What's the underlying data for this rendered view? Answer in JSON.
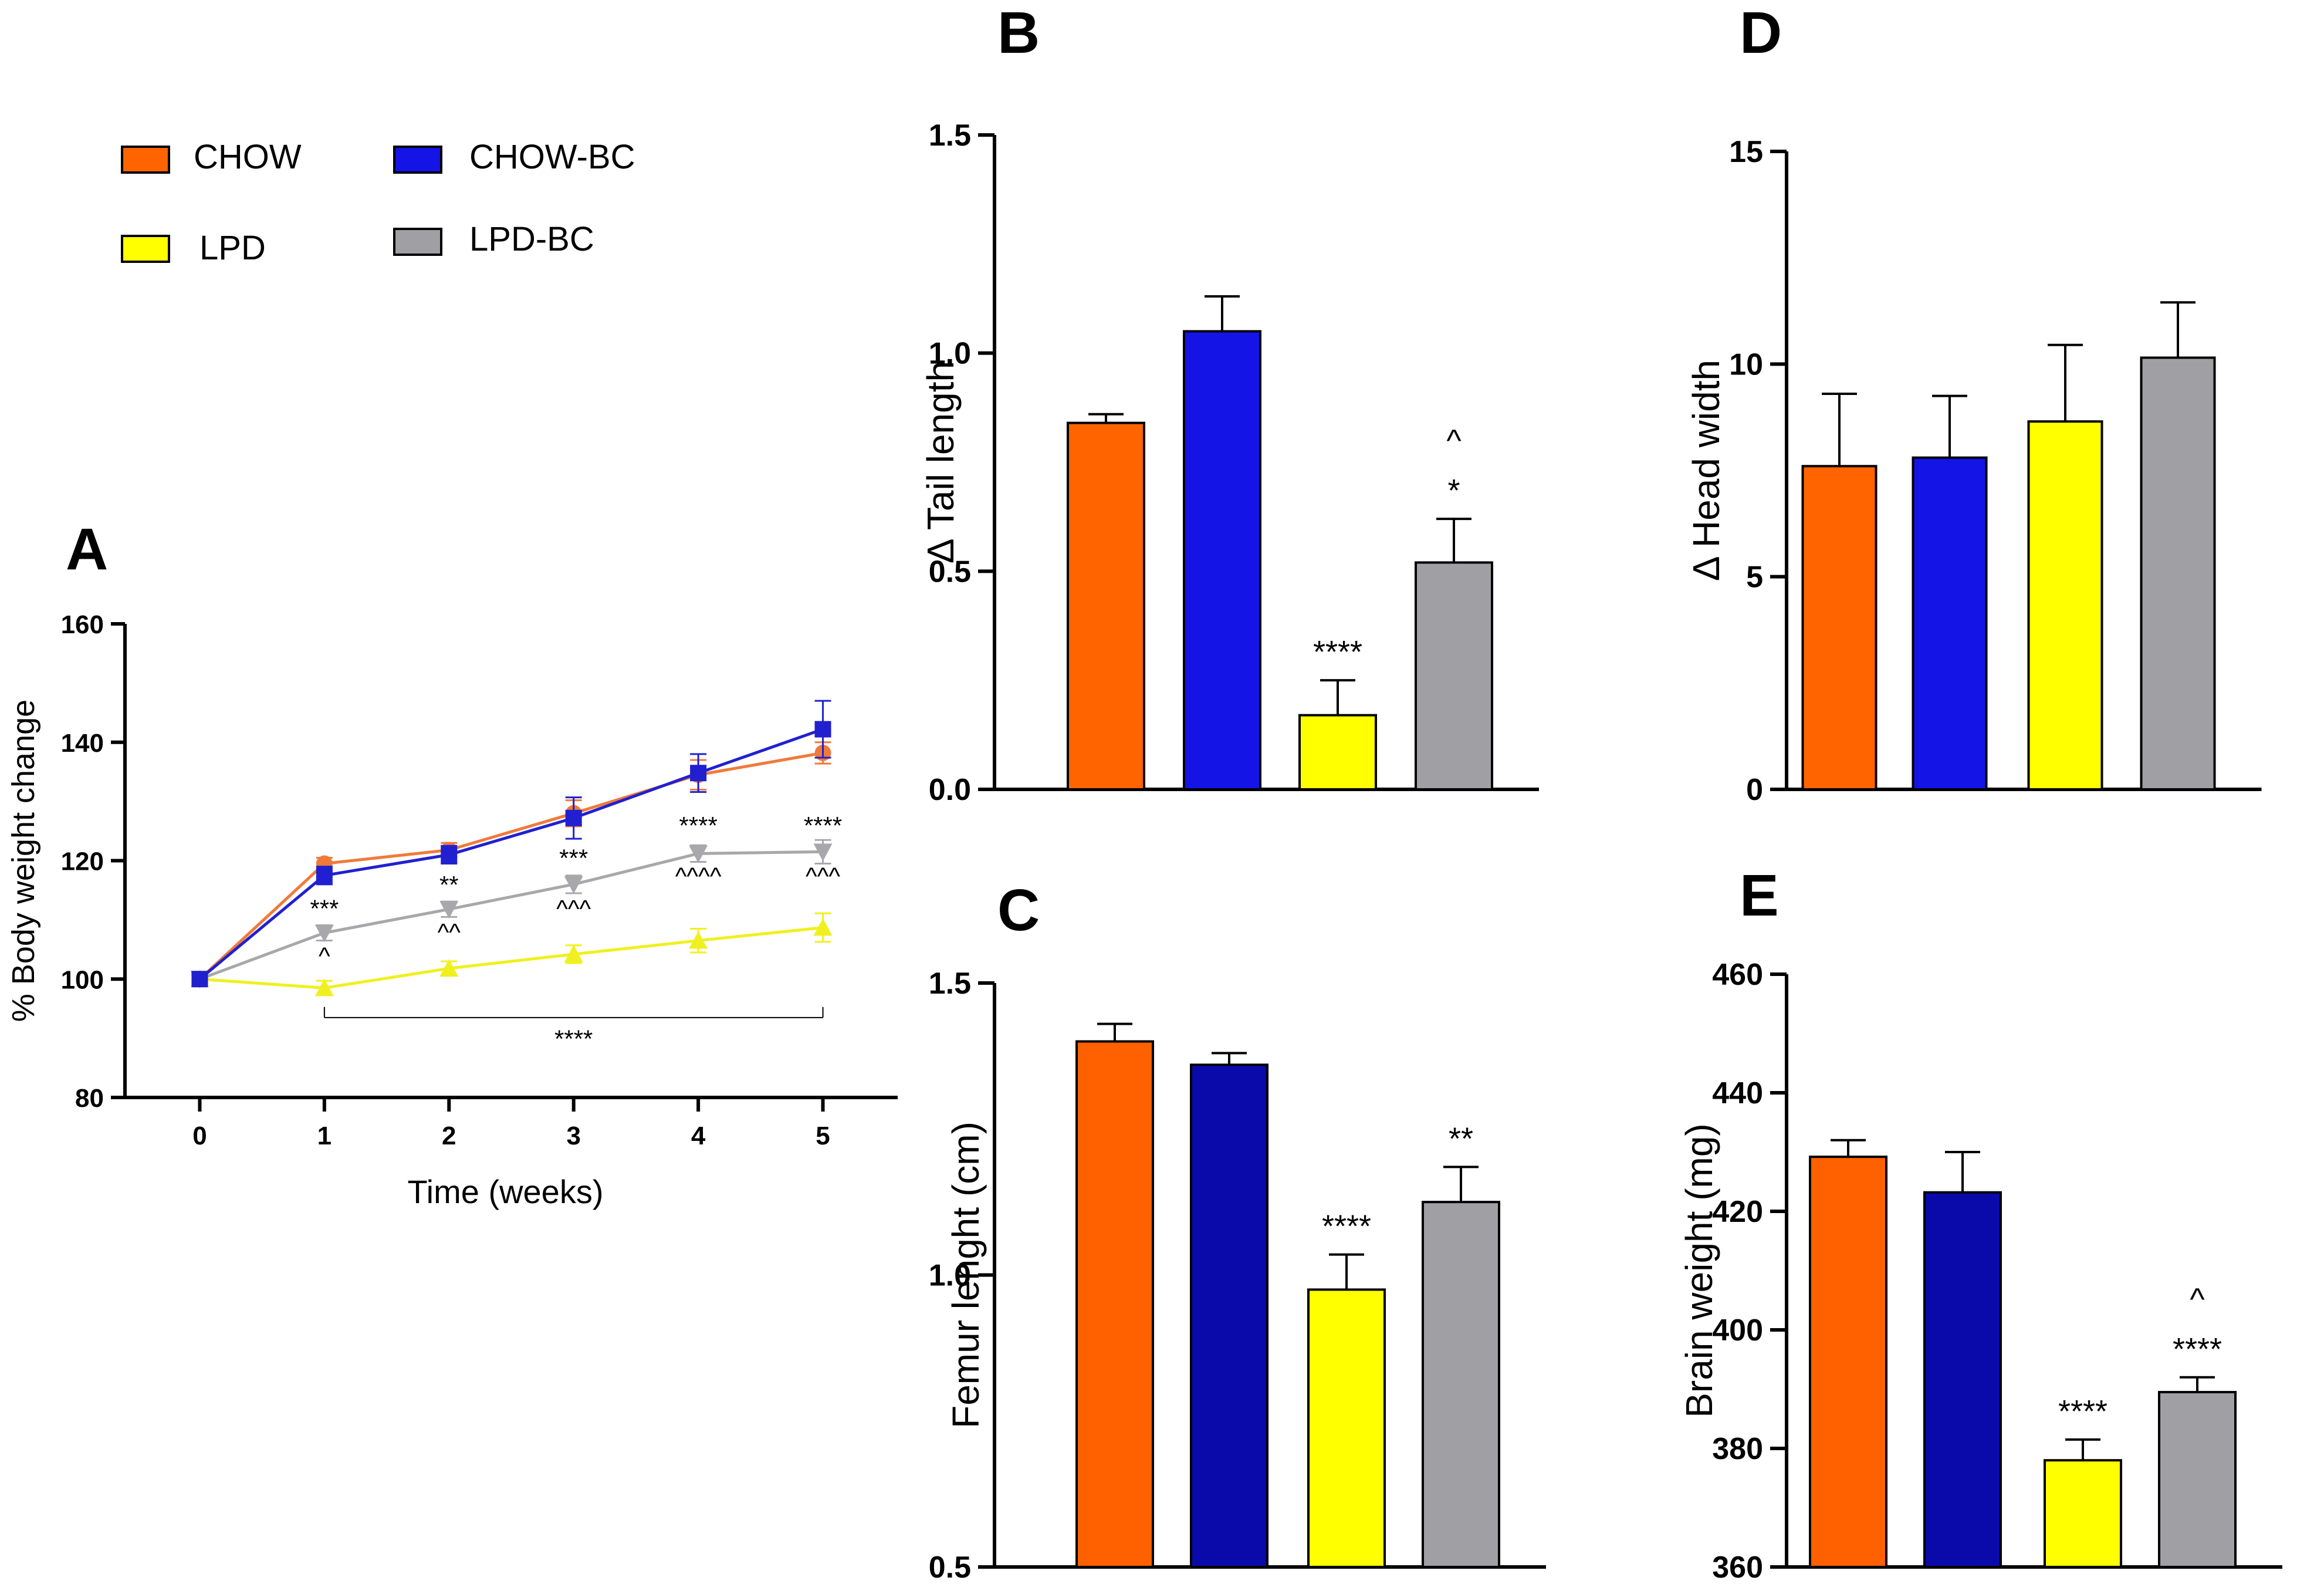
{
  "legend": [
    {
      "name": "CHOW",
      "color": "#FF6400"
    },
    {
      "name": "CHOW-BC",
      "color": "#1414E6"
    },
    {
      "name": "LPD",
      "color": "#FFFF00"
    },
    {
      "name": "LPD-BC",
      "color": "#A0A0A4"
    }
  ],
  "chart_data": [
    {
      "panel": "A",
      "type": "line",
      "xlabel": "Time (weeks)",
      "ylabel": "% Body weight change",
      "x": [
        0,
        1,
        2,
        3,
        4,
        5
      ],
      "xlim": [
        -0.6,
        5.6
      ],
      "ylim": [
        80,
        160
      ],
      "yticks": [
        80,
        100,
        120,
        140,
        160
      ],
      "series": [
        {
          "name": "CHOW",
          "color": "#F07A3A",
          "marker": "circle",
          "values": [
            100,
            119.5,
            121.8,
            128,
            134.5,
            138.2
          ],
          "errors": [
            0.8,
            1.0,
            1.2,
            2.2,
            2.5,
            1.8
          ]
        },
        {
          "name": "CHOW-BC",
          "color": "#2020D0",
          "marker": "square",
          "values": [
            100,
            117.5,
            121,
            127.2,
            134.8,
            142.2
          ],
          "errors": [
            0.8,
            1.5,
            1.5,
            3.5,
            3.2,
            4.8
          ]
        },
        {
          "name": "LPD",
          "color": "#F0F020",
          "marker": "triangle-up",
          "values": [
            100,
            98.5,
            101.8,
            104.2,
            106.5,
            108.7
          ],
          "errors": [
            0.6,
            1.2,
            1.2,
            1.5,
            2.0,
            2.4
          ]
        },
        {
          "name": "LPD-BC",
          "color": "#A8A8AC",
          "marker": "triangle-down",
          "values": [
            100,
            107.8,
            111.8,
            116,
            121.2,
            121.5
          ],
          "errors": [
            0.6,
            1.3,
            1.3,
            1.5,
            1.4,
            2.0
          ]
        }
      ],
      "annotations": [
        {
          "text": "***",
          "x": 1,
          "y": 110.5
        },
        {
          "text": "^",
          "x": 1,
          "y": 102.5
        },
        {
          "text": "**",
          "x": 2,
          "y": 114.5
        },
        {
          "text": "^^",
          "x": 2,
          "y": 106.5
        },
        {
          "text": "***",
          "x": 3,
          "y": 119.0
        },
        {
          "text": "^^^",
          "x": 3,
          "y": 110.5
        },
        {
          "text": "****",
          "x": 4,
          "y": 124.5
        },
        {
          "text": "^^^^",
          "x": 4,
          "y": 116.0
        },
        {
          "text": "****",
          "x": 5,
          "y": 124.5
        },
        {
          "text": "^^^",
          "x": 5,
          "y": 116.0
        }
      ],
      "bracket": {
        "x1": 1,
        "x2": 5,
        "y": 93.5,
        "label": "****",
        "label_y": 88.5
      }
    },
    {
      "panel": "B",
      "type": "bar",
      "ylabel": "Δ Tail length",
      "categories": [
        "CHOW",
        "CHOW-BC",
        "LPD",
        "LPD-BC"
      ],
      "colors": [
        "#FF6400",
        "#1414E6",
        "#FFFF00",
        "#A0A0A4"
      ],
      "values": [
        0.84,
        1.05,
        0.17,
        0.52
      ],
      "errors": [
        0.02,
        0.08,
        0.08,
        0.1
      ],
      "ylim": [
        0,
        1.5
      ],
      "yticks": [
        "0.0",
        "0.5",
        "1.0",
        "1.5"
      ],
      "annotations": [
        [
          "",
          ""
        ],
        [
          "",
          ""
        ],
        [
          "****",
          ""
        ],
        [
          "*",
          "^"
        ]
      ]
    },
    {
      "panel": "C",
      "type": "bar",
      "ylabel": "Femur lenght (cm)",
      "categories": [
        "CHOW",
        "CHOW-BC",
        "LPD",
        "LPD-BC"
      ],
      "colors": [
        "#FF6000",
        "#0A0AAA",
        "#FFFF00",
        "#A0A0A4"
      ],
      "values": [
        1.4,
        1.36,
        0.975,
        1.125
      ],
      "errors": [
        0.03,
        0.02,
        0.06,
        0.06
      ],
      "ylim": [
        0.5,
        1.5
      ],
      "yticks": [
        "0.5",
        "1.0",
        "1.5"
      ],
      "annotations": [
        [
          "",
          ""
        ],
        [
          "",
          ""
        ],
        [
          "****",
          ""
        ],
        [
          "**",
          ""
        ]
      ]
    },
    {
      "panel": "D",
      "type": "bar",
      "ylabel": "Δ Head width",
      "categories": [
        "CHOW",
        "CHOW-BC",
        "LPD",
        "LPD-BC"
      ],
      "colors": [
        "#FF6400",
        "#1414E6",
        "#FFFF00",
        "#A0A0A4"
      ],
      "values": [
        7.6,
        7.8,
        8.65,
        10.15
      ],
      "errors": [
        1.7,
        1.45,
        1.8,
        1.3
      ],
      "ylim": [
        0,
        15
      ],
      "yticks": [
        "0",
        "5",
        "10",
        "15"
      ],
      "annotations": [
        [
          "",
          ""
        ],
        [
          "",
          ""
        ],
        [
          "",
          ""
        ],
        [
          "",
          ""
        ]
      ]
    },
    {
      "panel": "E",
      "type": "bar",
      "ylabel": "Brain weight (mg)",
      "categories": [
        "CHOW",
        "CHOW-BC",
        "LPD",
        "LPD-BC"
      ],
      "colors": [
        "#FF6000",
        "#0A0AAA",
        "#FFFF00",
        "#A0A0A4"
      ],
      "values": [
        429.2,
        423.2,
        378.0,
        389.5
      ],
      "errors": [
        2.8,
        6.8,
        3.5,
        2.5
      ],
      "ylim": [
        360,
        460
      ],
      "yticks": [
        "360",
        "380",
        "400",
        "420",
        "440",
        "460"
      ],
      "annotations": [
        [
          "",
          ""
        ],
        [
          "",
          ""
        ],
        [
          "****",
          ""
        ],
        [
          "****",
          "^"
        ]
      ]
    }
  ]
}
